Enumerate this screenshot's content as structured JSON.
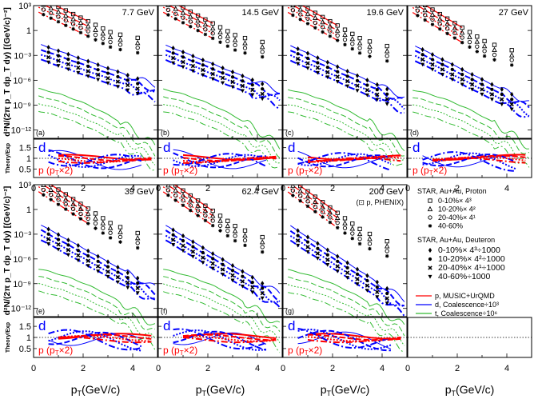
{
  "chart_data": {
    "type": "line",
    "title": "",
    "xlabel": "p_T(GeV/c)",
    "ylabel_spectra": "d²N/(2π p_T dp_T dy) [(GeV/c)⁻²]",
    "ylabel_ratio": "Theory/Exp",
    "xlim": [
      0,
      5
    ],
    "x_ticks": [
      "0",
      "2",
      "4"
    ],
    "spectra_ylim_log10": [
      -13,
      3
    ],
    "spectra_y_ticks": [
      "10³",
      "1",
      "10⁻³",
      "10⁻⁶",
      "10⁻⁹",
      "10⁻¹²"
    ],
    "ratio_ylim": [
      0.1,
      1.9
    ],
    "ratio_y_ticks": [
      "1.5",
      "1",
      "0.5"
    ],
    "ratio_labels": {
      "deuteron": "d",
      "proton": "p (p_T×2)"
    },
    "colors": {
      "proton": "#ff0000",
      "deuteron": "#0000ff",
      "triton": "#33bb33",
      "axis": "#000000"
    },
    "panels": [
      {
        "energy": "7.7 GeV",
        "label": "(a)",
        "row": 0,
        "col": 0
      },
      {
        "energy": "14.5 GeV",
        "label": "(b)",
        "row": 0,
        "col": 1
      },
      {
        "energy": "19.6 GeV",
        "label": "(c)",
        "row": 0,
        "col": 2
      },
      {
        "energy": "27 GeV",
        "label": "(d)",
        "row": 0,
        "col": 3
      },
      {
        "energy": "39 GeV",
        "label": "(e)",
        "row": 1,
        "col": 0
      },
      {
        "energy": "62.4 GeV",
        "label": "(f)",
        "row": 1,
        "col": 1
      },
      {
        "energy": "200 GeV",
        "label": "(g)",
        "row": 1,
        "col": 2,
        "note": "(⊡ p, PHENIX)"
      }
    ],
    "proton_series": [
      {
        "name": "0-10%×4³",
        "offset_log10": 1.8
      },
      {
        "name": "10-20%×4²",
        "offset_log10": 1.2
      },
      {
        "name": "20-40%×4¹",
        "offset_log10": 0.6
      },
      {
        "name": "40-60%",
        "offset_log10": 0
      }
    ],
    "deuteron_series": [
      {
        "name": "0-10%×4³÷1000",
        "offset_log10": -1.2
      },
      {
        "name": "10-20%×4²÷1000",
        "offset_log10": -1.8
      },
      {
        "name": "20-40%×4¹÷1000",
        "offset_log10": -2.4
      },
      {
        "name": "40-60%÷1000",
        "offset_log10": -3.0
      }
    ],
    "triton_offsets_log10": [
      -6.9,
      -7.8,
      -8.7,
      -9.6
    ],
    "sample_x": [
      0.4,
      0.7,
      1.0,
      1.3,
      1.6,
      1.9,
      2.2,
      2.5,
      2.8,
      3.1
    ],
    "deuteron_x": [
      0.6,
      1.0,
      1.4,
      1.8,
      2.2,
      2.6,
      3.0,
      3.4,
      3.8,
      4.2
    ]
  },
  "legend": {
    "star_proton_title": "STAR, Au+Au, Proton",
    "star_proton_entries": [
      "0-10%× 4³",
      "10-20%× 4²",
      "20-40%× 4¹",
      "40-60%"
    ],
    "star_deuteron_title": "STAR, Au+Au, Deuteron",
    "star_deuteron_entries": [
      "0-10%× 4³÷1000",
      "10-20%× 4²÷1000",
      "20-40%× 4¹÷1000",
      "40-60%÷1000"
    ],
    "model_entries": [
      "p, MUSIC+UrQMD",
      "d, Coalescence÷10³",
      "t, Coalescence÷10⁶"
    ]
  }
}
